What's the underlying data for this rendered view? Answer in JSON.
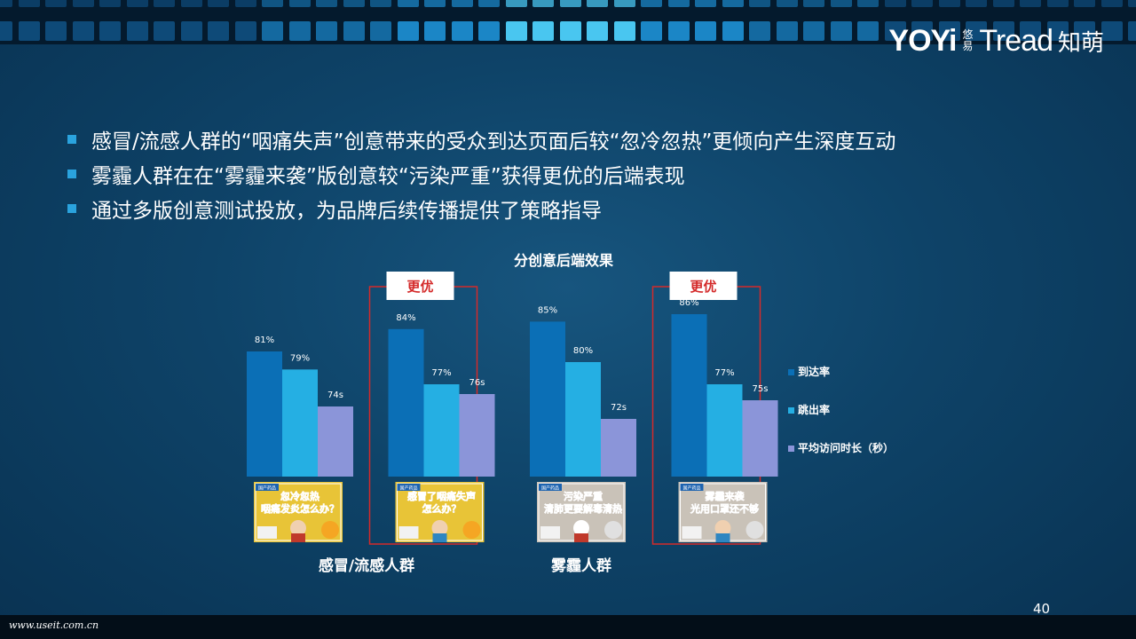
{
  "header": {
    "logo": {
      "brand_latin": "YOYi",
      "brand_cn": "悠易",
      "partner_latin": "Tread",
      "partner_cn": "知萌"
    }
  },
  "bullets": [
    "感冒/流感人群的“咽痛失声”创意带来的受众到达页面后较“忽冷忽热”更倾向产生深度互动",
    "雾霾人群在在“雾霾来袭”版创意较“污染严重”获得更优的后端表现",
    "通过多版创意测试投放，为品牌后续传播提供了策略指导"
  ],
  "colors": {
    "arrival": "#0b6fb6",
    "bounce": "#25afe3",
    "duration": "#8b95d9",
    "highlight": "#d42a2a",
    "bullet": "#2aa3de"
  },
  "chart_data": {
    "type": "bar",
    "title": "分创意后端效果",
    "categories": [
      "忽冷忽热",
      "咽痛失声",
      "污染严重",
      "雾霾来袭"
    ],
    "series": [
      {
        "name": "到达率",
        "values": [
          81,
          84,
          85,
          86
        ],
        "labels": [
          "81%",
          "84%",
          "85%",
          "86%"
        ]
      },
      {
        "name": "跳出率",
        "values": [
          79,
          77,
          80,
          77
        ],
        "labels": [
          "79%",
          "77%",
          "80%",
          "77%"
        ]
      },
      {
        "name": "平均访问时长（秒）",
        "values": [
          74,
          76,
          72,
          75
        ],
        "labels": [
          "74s",
          "76s",
          "72s",
          "75s"
        ]
      }
    ],
    "groups": [
      "感冒/流感人群",
      "雾霾人群"
    ],
    "highlight_label": "更优",
    "highlighted": [
      "咽痛失声",
      "雾霾来袭"
    ],
    "creative_images": [
      {
        "caption": "忽冷忽热 咽痛发炎怎么办？",
        "tag": "国产药品"
      },
      {
        "caption": "感冒了咽痛失声 怎么办？",
        "tag": "国产药品"
      },
      {
        "caption": "污染严重 清肺更要解毒清热",
        "tag": "国产药品"
      },
      {
        "caption": "雾霾来袭 光用口罩还不够",
        "tag": "国产药品"
      }
    ],
    "legend_position": "right",
    "grid": false
  },
  "footer": {
    "page_number": "40",
    "watermark": "www.useit.com.cn"
  }
}
